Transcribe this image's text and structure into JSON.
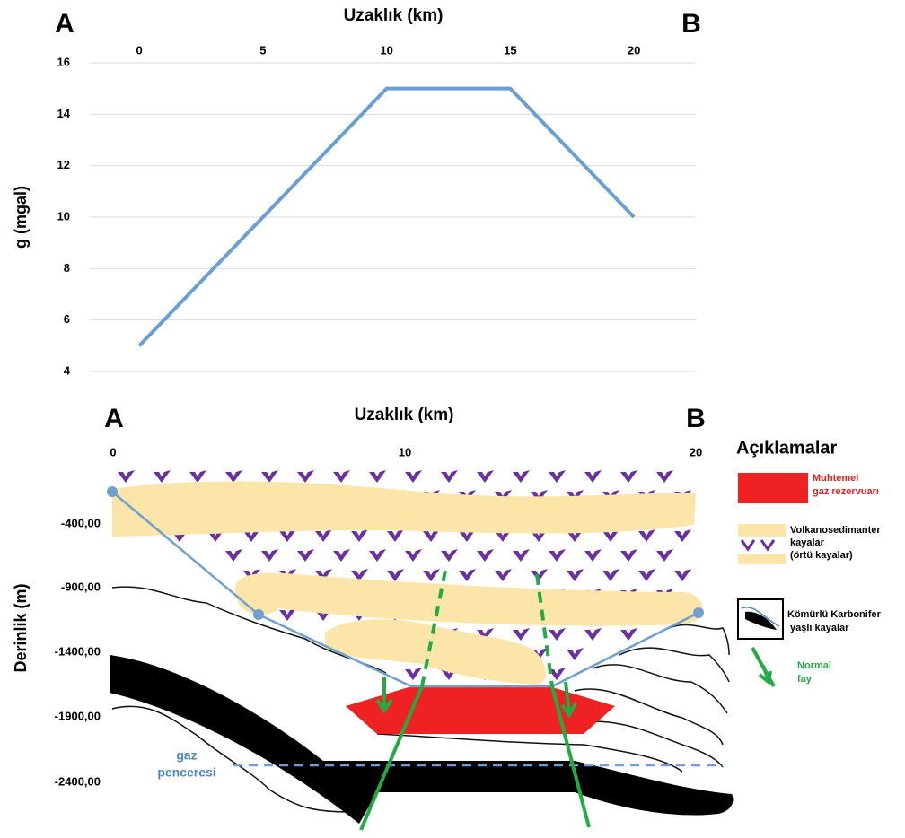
{
  "chart_data": {
    "type": "line",
    "title": "Uzaklık (km)",
    "y_label": "g (mgal)",
    "annotations": [
      "A",
      "B"
    ],
    "x": [
      0,
      5,
      10,
      15,
      20
    ],
    "values": [
      5,
      10,
      15,
      15,
      10
    ],
    "color": "#6a9fd4",
    "xlim": [
      -2,
      22.5
    ],
    "xticks": [
      0,
      5,
      10,
      15,
      20
    ],
    "ylim": [
      4,
      16
    ],
    "yticks": [
      4,
      6,
      8,
      10,
      12,
      14,
      16
    ],
    "grid": true
  },
  "section": {
    "title": "Uzaklık (km)",
    "annotations": [
      "A",
      "B"
    ],
    "x_ticks": [
      "0",
      "10",
      "20"
    ],
    "y_label": "Derinlik (m)",
    "y_ticks": [
      "-400,00",
      "-900,00",
      "-1400,00",
      "-1900,00",
      "-2400,00"
    ],
    "gas_window": [
      "gaz",
      "penceresi"
    ]
  },
  "legend": {
    "title": "Açıklamalar",
    "reservoir": [
      "Muhtemel",
      "gaz rezervuarı"
    ],
    "cover": [
      "Volkanosedimanter",
      "kayalar",
      "(örtü kayalar)"
    ],
    "coal": [
      "Kömürlü Karbonifer",
      "yaşlı kayalar"
    ],
    "fault": [
      "Normal",
      "fay"
    ]
  }
}
